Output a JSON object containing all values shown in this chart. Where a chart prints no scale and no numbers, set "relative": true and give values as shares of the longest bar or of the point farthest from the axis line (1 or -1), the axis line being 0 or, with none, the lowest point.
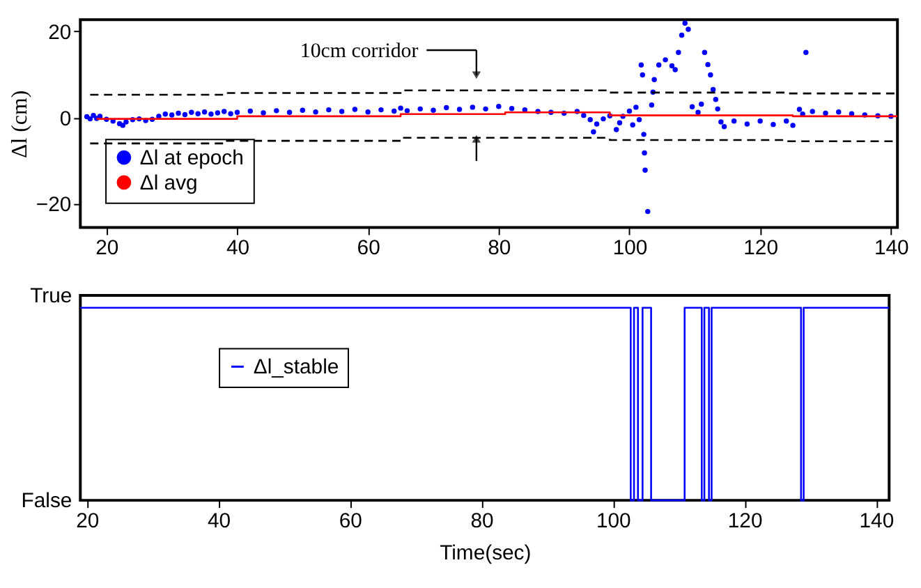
{
  "chart_data": [
    {
      "type": "scatter",
      "ylabel": "Δl (cm)",
      "xlim": [
        16,
        141
      ],
      "ylim": [
        -25.5,
        22.7
      ],
      "xticks": [
        20,
        40,
        60,
        80,
        100,
        120,
        140
      ],
      "yticks": [
        -20,
        0,
        20
      ],
      "grid": false,
      "legend": "bottom left",
      "annotations": [
        "10cm corridor"
      ],
      "series": [
        {
          "name": "Δl at epoch",
          "marker": "circle",
          "color": "#0000ff",
          "x": [
            17,
            17.5,
            18,
            18.5,
            19,
            20,
            21,
            22,
            22.5,
            23,
            24,
            25,
            26,
            27,
            28,
            29,
            30,
            31,
            32,
            33,
            34,
            35,
            36,
            37,
            38,
            39,
            40,
            42,
            44,
            46,
            48,
            50,
            52,
            54,
            56,
            58,
            60,
            62,
            64,
            65,
            66,
            68,
            70,
            72,
            74,
            76,
            78,
            80,
            82,
            84,
            86,
            88,
            90,
            92,
            93,
            94,
            94.5,
            95,
            96,
            97,
            98,
            98.5,
            99,
            100,
            100.5,
            101,
            101.5,
            101.8,
            102,
            102.2,
            102.3,
            102.4,
            102.8,
            103.4,
            103.6,
            103.8,
            104.5,
            105.5,
            106.5,
            107,
            107.5,
            108,
            108.5,
            109,
            109.6,
            110.5,
            111,
            111.5,
            112,
            112.4,
            112.8,
            113.2,
            113.5,
            114,
            114.5,
            116,
            118,
            120,
            122,
            124,
            125,
            126,
            126.5,
            127,
            128,
            130,
            132,
            134,
            136,
            138,
            140
          ],
          "values": [
            0.2,
            -0.3,
            0.5,
            -0.2,
            0.3,
            -0.4,
            -0.8,
            -1.4,
            -1.8,
            -1.0,
            -0.5,
            -0.3,
            -0.7,
            -0.4,
            0.3,
            0.8,
            0.6,
            1.0,
            0.7,
            1.2,
            0.9,
            1.3,
            0.8,
            1.1,
            1.4,
            0.9,
            1.2,
            1.5,
            1.1,
            1.6,
            1.2,
            1.7,
            1.3,
            1.8,
            1.4,
            1.9,
            1.3,
            1.8,
            1.5,
            2.2,
            1.6,
            2.0,
            1.7,
            2.3,
            1.9,
            2.4,
            2.0,
            2.6,
            2.1,
            1.8,
            1.4,
            1.2,
            1.0,
            1.4,
            0.5,
            -0.5,
            -3.3,
            -1.5,
            -0.3,
            0.4,
            -2.8,
            -1.2,
            0.3,
            1.5,
            -1.7,
            2.4,
            -0.5,
            12.2,
            9.9,
            -3.9,
            -8.2,
            -12.2,
            -21.8,
            2.9,
            5.9,
            8.8,
            12.2,
            13.4,
            12.0,
            11.1,
            15.1,
            19.1,
            21.9,
            20.5,
            2.5,
            1.2,
            3.1,
            15.1,
            12.3,
            9.9,
            6.5,
            4.2,
            2.0,
            -1.0,
            -2.1,
            -0.8,
            -1.5,
            -0.8,
            -1.6,
            -0.8,
            -1.8,
            1.9,
            0.8,
            15.1,
            1.4,
            1.0,
            1.3,
            0.9,
            0.6,
            0.4,
            0.3
          ]
        },
        {
          "name": "Δl avg",
          "type": "step",
          "color": "#ff0000",
          "x": [
            18.5,
            40,
            65,
            81,
            97,
            125,
            141
          ],
          "values": [
            -0.3,
            0.3,
            0.8,
            1.2,
            0.5,
            0.3,
            0.3
          ]
        },
        {
          "type": "step",
          "line_style": "dashed",
          "color": "#000000",
          "x": [
            17.5,
            38,
            65,
            97,
            124,
            141
          ],
          "values": [
            5.3,
            5.7,
            6.3,
            5.8,
            5.6,
            5.6
          ]
        },
        {
          "type": "step",
          "line_style": "dashed",
          "color": "#000000",
          "x": [
            17.5,
            38,
            65,
            97,
            124,
            141
          ],
          "values": [
            -6.0,
            -5.4,
            -4.7,
            -5.2,
            -5.5,
            -5.5
          ]
        }
      ]
    },
    {
      "type": "step",
      "xlabel": "Time(sec)",
      "xlim": [
        19,
        142
      ],
      "relative": true,
      "xticks": [
        20,
        40,
        60,
        80,
        100,
        120,
        140
      ],
      "annotations": [
        "True",
        "False"
      ],
      "grid": false,
      "legend": "left",
      "series": [
        {
          "name": "Δl_stable",
          "color": "#0000ff",
          "x": [
            19,
            102.7,
            103.2,
            103.8,
            104.5,
            105.8,
            110.9,
            113.5,
            113.9,
            114.6,
            115.0,
            128.6,
            129.0,
            142
          ],
          "values": [
            1,
            0,
            1,
            0,
            1,
            0,
            1,
            0,
            1,
            0,
            1,
            0,
            1,
            1
          ]
        }
      ]
    }
  ]
}
